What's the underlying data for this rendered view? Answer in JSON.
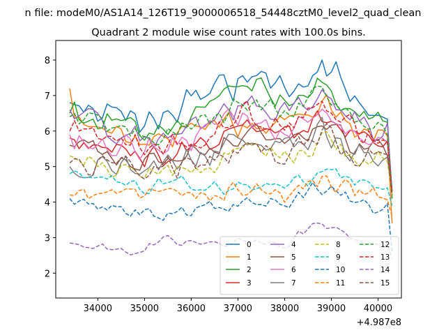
{
  "chart_data": {
    "type": "line",
    "suptitle": "n file: modeM0/AS1A14_126T19_9000006518_54448cztM0_level2_quad_clean",
    "title": "Quadrant 2 module wise count rates with 100.0s bins.",
    "xlabel": "",
    "ylabel": "",
    "x_offset_label": "+4.987e8",
    "xlim": [
      33100,
      40500
    ],
    "ylim": [
      1.3,
      8.55
    ],
    "x_ticks": [
      34000,
      35000,
      36000,
      37000,
      38000,
      39000,
      40000
    ],
    "x_tick_labels": [
      "34000",
      "35000",
      "36000",
      "37000",
      "38000",
      "39000",
      "40000"
    ],
    "y_ticks": [
      2,
      3,
      4,
      5,
      6,
      7,
      8
    ],
    "y_tick_labels": [
      "2",
      "3",
      "4",
      "5",
      "6",
      "7",
      "8"
    ],
    "x_start": 33400,
    "x_step": 100,
    "legend_position": "lower-right",
    "legend_columns": 4,
    "series": [
      {
        "name": "0",
        "color": "#1f77b4",
        "style": "solid",
        "level": 6.5,
        "amp": 0.55,
        "trend": [
          [
            33400,
            6.8
          ],
          [
            34000,
            6.5
          ],
          [
            35000,
            6.3
          ],
          [
            36000,
            6.7
          ],
          [
            36800,
            7.3
          ],
          [
            37500,
            7.6
          ],
          [
            38000,
            6.9
          ],
          [
            38800,
            7.8
          ],
          [
            39500,
            7.0
          ],
          [
            40200,
            6.5
          ],
          [
            40300,
            4.1
          ]
        ]
      },
      {
        "name": "1",
        "color": "#ff7f0e",
        "style": "solid",
        "level": 5.9,
        "amp": 0.45,
        "trend": [
          [
            33400,
            7.2
          ],
          [
            33500,
            6.2
          ],
          [
            34500,
            5.9
          ],
          [
            35500,
            5.8
          ],
          [
            36500,
            6.3
          ],
          [
            37000,
            6.1
          ],
          [
            38000,
            6.2
          ],
          [
            38800,
            6.9
          ],
          [
            39500,
            6.0
          ],
          [
            40200,
            5.9
          ],
          [
            40300,
            3.4
          ]
        ]
      },
      {
        "name": "2",
        "color": "#2ca02c",
        "style": "solid",
        "level": 6.3,
        "amp": 0.45,
        "trend": [
          [
            33400,
            6.5
          ],
          [
            34500,
            6.1
          ],
          [
            35500,
            6.0
          ],
          [
            36500,
            6.6
          ],
          [
            37200,
            7.6
          ],
          [
            38000,
            6.9
          ],
          [
            38800,
            7.3
          ],
          [
            39500,
            6.7
          ],
          [
            40200,
            6.2
          ],
          [
            40300,
            4.1
          ]
        ]
      },
      {
        "name": "3",
        "color": "#d62728",
        "style": "solid",
        "level": 5.6,
        "amp": 0.4,
        "trend": [
          [
            33400,
            5.8
          ],
          [
            34500,
            5.4
          ],
          [
            35500,
            5.3
          ],
          [
            36500,
            5.8
          ],
          [
            37200,
            6.1
          ],
          [
            38000,
            5.8
          ],
          [
            38800,
            6.4
          ],
          [
            39500,
            5.8
          ],
          [
            40200,
            5.6
          ],
          [
            40300,
            4.2
          ]
        ]
      },
      {
        "name": "4",
        "color": "#9467bd",
        "style": "solid",
        "level": 6.1,
        "amp": 0.45,
        "trend": [
          [
            33400,
            6.6
          ],
          [
            34500,
            5.9
          ],
          [
            35500,
            5.7
          ],
          [
            36500,
            6.3
          ],
          [
            37200,
            6.9
          ],
          [
            38000,
            6.6
          ],
          [
            38800,
            7.0
          ],
          [
            39500,
            6.3
          ],
          [
            40200,
            6.0
          ],
          [
            40300,
            4.3
          ]
        ]
      },
      {
        "name": "5",
        "color": "#8c564b",
        "style": "solid",
        "level": 5.5,
        "amp": 0.4,
        "trend": [
          [
            33400,
            5.6
          ],
          [
            34500,
            5.3
          ],
          [
            35500,
            5.2
          ],
          [
            36500,
            5.6
          ],
          [
            37200,
            6.0
          ],
          [
            38000,
            5.6
          ],
          [
            38800,
            6.2
          ],
          [
            39500,
            5.6
          ],
          [
            40200,
            5.5
          ],
          [
            40300,
            4.3
          ]
        ]
      },
      {
        "name": "6",
        "color": "#e377c2",
        "style": "solid",
        "level": 5.8,
        "amp": 0.45,
        "trend": [
          [
            33400,
            5.9
          ],
          [
            34500,
            5.6
          ],
          [
            35500,
            5.5
          ],
          [
            36500,
            6.1
          ],
          [
            37200,
            6.4
          ],
          [
            38000,
            6.0
          ],
          [
            38800,
            6.9
          ],
          [
            39500,
            5.9
          ],
          [
            40200,
            5.8
          ],
          [
            40300,
            4.2
          ]
        ]
      },
      {
        "name": "7",
        "color": "#7f7f7f",
        "style": "solid",
        "level": 5.3,
        "amp": 0.45,
        "trend": [
          [
            33400,
            5.0
          ],
          [
            34500,
            5.1
          ],
          [
            35500,
            5.1
          ],
          [
            36500,
            5.4
          ],
          [
            37200,
            5.9
          ],
          [
            38000,
            5.5
          ],
          [
            38800,
            6.0
          ],
          [
            39500,
            5.3
          ],
          [
            40200,
            5.3
          ],
          [
            40300,
            4.3
          ]
        ]
      },
      {
        "name": "8",
        "color": "#bcbd22",
        "style": "dashed",
        "level": 5.1,
        "amp": 0.4,
        "trend": [
          [
            33400,
            5.3
          ],
          [
            34500,
            5.0
          ],
          [
            35500,
            4.9
          ],
          [
            36500,
            5.0
          ],
          [
            37200,
            5.4
          ],
          [
            38000,
            5.3
          ],
          [
            38800,
            5.8
          ],
          [
            39500,
            5.2
          ],
          [
            40200,
            5.1
          ],
          [
            40300,
            4.2
          ]
        ]
      },
      {
        "name": "9",
        "color": "#17becf",
        "style": "dashed",
        "level": 4.6,
        "amp": 0.3,
        "trend": [
          [
            33400,
            4.8
          ],
          [
            34500,
            4.5
          ],
          [
            35500,
            4.5
          ],
          [
            36500,
            4.5
          ],
          [
            37200,
            4.5
          ],
          [
            38000,
            4.4
          ],
          [
            38800,
            4.9
          ],
          [
            39500,
            4.5
          ],
          [
            40200,
            4.3
          ],
          [
            40300,
            3.9
          ]
        ]
      },
      {
        "name": "10",
        "color": "#1f77b4",
        "style": "dashed",
        "level": 3.9,
        "amp": 0.3,
        "trend": [
          [
            33400,
            4.1
          ],
          [
            34500,
            3.8
          ],
          [
            35500,
            3.7
          ],
          [
            36500,
            3.9
          ],
          [
            37200,
            4.1
          ],
          [
            38000,
            4.0
          ],
          [
            38800,
            4.4
          ],
          [
            39500,
            4.0
          ],
          [
            40200,
            3.8
          ],
          [
            40300,
            2.6
          ]
        ]
      },
      {
        "name": "11",
        "color": "#ff7f0e",
        "style": "dashed",
        "level": 4.3,
        "amp": 0.3,
        "trend": [
          [
            33400,
            4.2
          ],
          [
            34500,
            4.2
          ],
          [
            35500,
            4.2
          ],
          [
            36500,
            4.3
          ],
          [
            37200,
            4.4
          ],
          [
            38000,
            4.2
          ],
          [
            38800,
            4.7
          ],
          [
            39500,
            4.3
          ],
          [
            40200,
            4.2
          ],
          [
            40300,
            3.6
          ]
        ]
      },
      {
        "name": "12",
        "color": "#2ca02c",
        "style": "dashed",
        "level": 6.1,
        "amp": 0.4,
        "trend": [
          [
            33400,
            6.4
          ],
          [
            34500,
            6.0
          ],
          [
            35500,
            5.9
          ],
          [
            36500,
            6.3
          ],
          [
            37200,
            6.8
          ],
          [
            38000,
            6.5
          ],
          [
            38800,
            7.1
          ],
          [
            39500,
            6.4
          ],
          [
            40200,
            6.0
          ],
          [
            40300,
            4.3
          ]
        ]
      },
      {
        "name": "13",
        "color": "#d62728",
        "style": "dashed",
        "level": 5.8,
        "amp": 0.45,
        "trend": [
          [
            33400,
            6.0
          ],
          [
            34500,
            5.6
          ],
          [
            35500,
            5.5
          ],
          [
            36500,
            6.0
          ],
          [
            37200,
            6.5
          ],
          [
            38000,
            6.1
          ],
          [
            38800,
            6.9
          ],
          [
            39500,
            6.0
          ],
          [
            40200,
            5.7
          ],
          [
            40300,
            4.3
          ]
        ]
      },
      {
        "name": "14",
        "color": "#9467bd",
        "style": "dashed",
        "level": 2.85,
        "amp": 0.18,
        "trend": [
          [
            33400,
            2.85
          ],
          [
            34000,
            2.8
          ],
          [
            34500,
            2.6
          ],
          [
            35500,
            2.9
          ],
          [
            36500,
            2.8
          ],
          [
            37000,
            2.9
          ],
          [
            38000,
            2.8
          ],
          [
            38800,
            3.5
          ],
          [
            39500,
            2.85
          ],
          [
            40200,
            2.8
          ],
          [
            40300,
            2.4
          ]
        ]
      },
      {
        "name": "15",
        "color": "#8c564b",
        "style": "dashed",
        "level": 5.2,
        "amp": 0.4,
        "trend": [
          [
            33400,
            5.1
          ],
          [
            34500,
            5.0
          ],
          [
            35500,
            5.0
          ],
          [
            36500,
            5.2
          ],
          [
            37200,
            5.6
          ],
          [
            38000,
            5.4
          ],
          [
            38800,
            6.0
          ],
          [
            39500,
            5.3
          ],
          [
            40200,
            5.2
          ],
          [
            40300,
            4.2
          ]
        ]
      }
    ]
  }
}
